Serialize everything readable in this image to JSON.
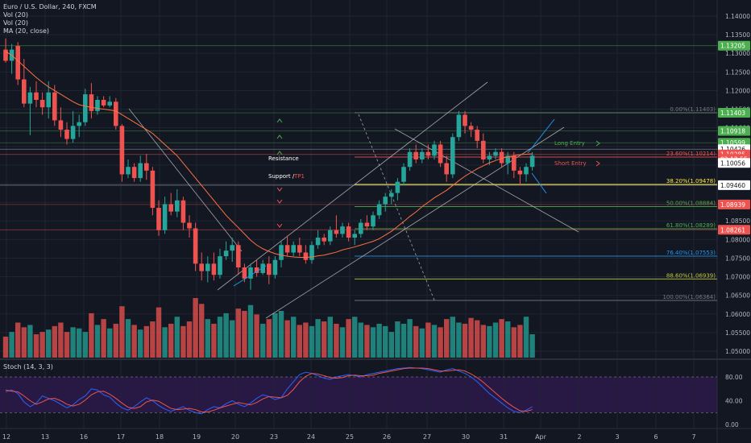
{
  "header": {
    "title": "Euro / U.S. Dollar, 240, FXCM",
    "indicators": [
      "Vol (20)",
      "Vol (20)",
      "MA (20, close)"
    ]
  },
  "stoch": {
    "label": "Stoch (14, 3, 3)",
    "ticks": [
      "80.00",
      "40.00",
      "0.00"
    ]
  },
  "colors": {
    "bg": "#131722",
    "grid": "#1f2433",
    "text": "#b2b5be",
    "up": "#26a69a",
    "down": "#ef5350",
    "vol_up": "#26a69a",
    "vol_down": "#ef5350",
    "ma": "#ff7043",
    "stoch_k": "#2962ff",
    "stoch_d": "#ef5350",
    "stoch_band": "#2d1a4a",
    "channel": "#c8c8c8"
  },
  "chart_data": {
    "type": "candlestick",
    "symbol": "Euro / U.S. Dollar",
    "timeframe": "240",
    "x_ticks": [
      "12",
      "13",
      "16",
      "17",
      "18",
      "19",
      "20",
      "23",
      "24",
      "25",
      "26",
      "27",
      "30",
      "31",
      "Apr",
      "2",
      "3",
      "6",
      "7"
    ],
    "y_ticks": [
      "1.14000",
      "1.13500",
      "1.13000",
      "1.12500",
      "1.12000",
      "1.11500",
      "1.11000",
      "1.10500",
      "1.10000",
      "1.09500",
      "1.09000",
      "1.08500",
      "1.08000",
      "1.07500",
      "1.07000",
      "1.06500",
      "1.06000",
      "1.05500",
      "1.05000"
    ],
    "ylim": [
      1.0475,
      1.1445
    ],
    "price_labels": [
      {
        "text": "1.13205",
        "value": 1.13205,
        "color": "#4caf50"
      },
      {
        "text": "1.11403",
        "value": 1.11403,
        "color": "#4caf50"
      },
      {
        "text": "1.10918",
        "value": 1.10918,
        "color": "#4caf50"
      },
      {
        "text": "1.10599",
        "value": 1.10599,
        "color": "#4caf50"
      },
      {
        "text": "1.10426",
        "value": 1.10426,
        "color": "#ffffff"
      },
      {
        "text": "1.10285",
        "value": 1.10285,
        "color": "#ef5350"
      },
      {
        "text": "02:12:55",
        "value": 1.10165,
        "color": "#ef5350"
      },
      {
        "text": "1.10056",
        "value": 1.10056,
        "color": "#ffffff"
      },
      {
        "text": "1.09460",
        "value": 1.0946,
        "color": "#ffffff"
      },
      {
        "text": "1.08939",
        "value": 1.08939,
        "color": "#ef5350"
      },
      {
        "text": "1.08261",
        "value": 1.08261,
        "color": "#ef5350"
      }
    ],
    "fib_levels": [
      {
        "label": "0.00%(1.11403)",
        "value": 1.11403,
        "color": "#787b86"
      },
      {
        "label": "23.60%(1.10214)",
        "value": 1.10214,
        "color": "#ef5350"
      },
      {
        "label": "38.20%(1.09478)",
        "value": 1.09478,
        "color": "#ffeb3b"
      },
      {
        "label": "50.00%(1.08884)",
        "value": 1.08884,
        "color": "#4caf50"
      },
      {
        "label": "61.80%(1.08289)",
        "value": 1.08289,
        "color": "#4caf50"
      },
      {
        "label": "76.40%(1.07553)",
        "value": 1.07553,
        "color": "#2196f3"
      },
      {
        "label": "88.60%(1.06939)",
        "value": 1.06939,
        "color": "#c0ca33"
      },
      {
        "label": "100.00%(1.06364)",
        "value": 1.06364,
        "color": "#787b86"
      }
    ],
    "annotations": {
      "resistance": "Resistance",
      "support": "Support /",
      "tp1": "TP1",
      "long_entry": "Long Entry",
      "short_entry": "Short Entry"
    },
    "candles": [
      [
        1.131,
        1.134,
        1.1275,
        1.128
      ],
      [
        1.128,
        1.1325,
        1.1245,
        1.131
      ],
      [
        1.132,
        1.133,
        1.1215,
        1.123
      ],
      [
        1.123,
        1.1285,
        1.1155,
        1.1165
      ],
      [
        1.1165,
        1.121,
        1.108,
        1.1195
      ],
      [
        1.1195,
        1.1225,
        1.1155,
        1.1175
      ],
      [
        1.1175,
        1.1195,
        1.1135,
        1.1155
      ],
      [
        1.1155,
        1.1225,
        1.1125,
        1.1195
      ],
      [
        1.1195,
        1.1215,
        1.1105,
        1.112
      ],
      [
        1.112,
        1.1155,
        1.1075,
        1.1095
      ],
      [
        1.1095,
        1.1115,
        1.1055,
        1.107
      ],
      [
        1.107,
        1.1145,
        1.106,
        1.1105
      ],
      [
        1.1105,
        1.1135,
        1.1075,
        1.1115
      ],
      [
        1.1115,
        1.1205,
        1.1105,
        1.119
      ],
      [
        1.119,
        1.122,
        1.1125,
        1.1145
      ],
      [
        1.1145,
        1.1185,
        1.1135,
        1.1175
      ],
      [
        1.1175,
        1.1185,
        1.1155,
        1.116
      ],
      [
        1.116,
        1.1185,
        1.1155,
        1.117
      ],
      [
        1.117,
        1.118,
        1.1095,
        1.1105
      ],
      [
        1.1105,
        1.111,
        1.0955,
        1.0975
      ],
      [
        1.0975,
        1.1015,
        1.0965,
        1.0995
      ],
      [
        1.0995,
        1.1005,
        1.0955,
        1.0965
      ],
      [
        1.0965,
        1.1025,
        1.0955,
        1.1005
      ],
      [
        1.1005,
        1.103,
        1.096,
        1.0985
      ],
      [
        1.0985,
        1.0995,
        1.0865,
        1.0885
      ],
      [
        1.0885,
        1.0905,
        1.081,
        1.0825
      ],
      [
        1.0825,
        1.0915,
        1.0815,
        1.0895
      ],
      [
        1.0895,
        1.0925,
        1.0865,
        1.0875
      ],
      [
        1.0875,
        1.0935,
        1.086,
        1.0905
      ],
      [
        1.0905,
        1.0915,
        1.0825,
        1.0845
      ],
      [
        1.0845,
        1.0865,
        1.0805,
        1.083
      ],
      [
        1.083,
        1.0845,
        1.0715,
        1.0735
      ],
      [
        1.0735,
        1.0765,
        1.069,
        1.0715
      ],
      [
        1.0715,
        1.0755,
        1.0685,
        1.0735
      ],
      [
        1.0735,
        1.0765,
        1.069,
        1.0705
      ],
      [
        1.0705,
        1.0775,
        1.0695,
        1.0755
      ],
      [
        1.0755,
        1.0795,
        1.0745,
        1.077
      ],
      [
        1.077,
        1.0805,
        1.074,
        1.0785
      ],
      [
        1.0785,
        1.0795,
        1.0705,
        1.0725
      ],
      [
        1.0725,
        1.0735,
        1.0685,
        1.0695
      ],
      [
        1.0695,
        1.0735,
        1.0665,
        1.0725
      ],
      [
        1.0725,
        1.0745,
        1.07,
        1.071
      ],
      [
        1.071,
        1.0745,
        1.0705,
        1.0735
      ],
      [
        1.0735,
        1.0755,
        1.068,
        1.0705
      ],
      [
        1.0705,
        1.0755,
        1.0695,
        1.0745
      ],
      [
        1.0745,
        1.0795,
        1.0725,
        1.0785
      ],
      [
        1.0785,
        1.081,
        1.0755,
        1.0765
      ],
      [
        1.0765,
        1.0795,
        1.0755,
        1.0785
      ],
      [
        1.0785,
        1.0805,
        1.0755,
        1.0765
      ],
      [
        1.0765,
        1.0785,
        1.0735,
        1.0745
      ],
      [
        1.0745,
        1.0795,
        1.0735,
        1.0785
      ],
      [
        1.0785,
        1.0825,
        1.0775,
        1.0805
      ],
      [
        1.0805,
        1.0815,
        1.0785,
        1.0795
      ],
      [
        1.0795,
        1.0835,
        1.0785,
        1.0825
      ],
      [
        1.0825,
        1.0865,
        1.0805,
        1.0815
      ],
      [
        1.0815,
        1.0845,
        1.0805,
        1.0835
      ],
      [
        1.0835,
        1.0845,
        1.0795,
        1.0805
      ],
      [
        1.0805,
        1.0825,
        1.0785,
        1.0815
      ],
      [
        1.0815,
        1.0855,
        1.0805,
        1.0845
      ],
      [
        1.0845,
        1.0865,
        1.0825,
        1.0835
      ],
      [
        1.0835,
        1.0875,
        1.0825,
        1.0865
      ],
      [
        1.0865,
        1.0905,
        1.0855,
        1.0895
      ],
      [
        1.0895,
        1.0925,
        1.0875,
        1.0915
      ],
      [
        1.0915,
        1.0935,
        1.0895,
        1.0925
      ],
      [
        1.0925,
        1.0965,
        1.0905,
        1.0955
      ],
      [
        1.0955,
        1.1005,
        1.0945,
        1.0995
      ],
      [
        1.0995,
        1.1045,
        1.0985,
        1.1035
      ],
      [
        1.1035,
        1.1055,
        1.1005,
        1.1015
      ],
      [
        1.1015,
        1.1045,
        1.1005,
        1.1035
      ],
      [
        1.1035,
        1.1055,
        1.1015,
        1.1025
      ],
      [
        1.1025,
        1.1065,
        1.1015,
        1.1055
      ],
      [
        1.1055,
        1.1065,
        1.0995,
        1.1005
      ],
      [
        1.1005,
        1.1025,
        1.0955,
        1.0975
      ],
      [
        1.0975,
        1.1085,
        1.0965,
        1.1075
      ],
      [
        1.1075,
        1.1145,
        1.1065,
        1.1135
      ],
      [
        1.1135,
        1.1145,
        1.1085,
        1.1105
      ],
      [
        1.1105,
        1.1115,
        1.1075,
        1.1095
      ],
      [
        1.1095,
        1.1105,
        1.1045,
        1.1065
      ],
      [
        1.1065,
        1.1085,
        1.1005,
        1.1015
      ],
      [
        1.1015,
        1.1035,
        1.1,
        1.1025
      ],
      [
        1.1025,
        1.1045,
        1.1015,
        1.1035
      ],
      [
        1.1035,
        1.1045,
        1.0995,
        1.1005
      ],
      [
        1.1005,
        1.1035,
        1.0975,
        1.1025
      ],
      [
        1.1025,
        1.1035,
        1.0965,
        1.0985
      ],
      [
        1.0985,
        1.0995,
        1.0945,
        1.0975
      ],
      [
        1.0975,
        1.1005,
        1.0955,
        1.0995
      ],
      [
        1.0995,
        1.1035,
        1.0985,
        1.1025
      ]
    ],
    "ma20": [
      1.1305,
      1.1295,
      1.128,
      1.1265,
      1.125,
      1.1235,
      1.1222,
      1.121,
      1.12,
      1.119,
      1.118,
      1.117,
      1.1162,
      1.1158,
      1.1155,
      1.1152,
      1.115,
      1.1148,
      1.1145,
      1.1135,
      1.1125,
      1.1115,
      1.1105,
      1.1095,
      1.1085,
      1.107,
      1.1055,
      1.104,
      1.1025,
      1.1005,
      1.0985,
      1.0965,
      1.0945,
      1.0925,
      1.0905,
      1.0885,
      1.0865,
      1.0848,
      1.0832,
      1.0815,
      1.0798,
      1.0785,
      1.0775,
      1.0768,
      1.0762,
      1.0758,
      1.0755,
      1.0753,
      1.0752,
      1.0752,
      1.0753,
      1.0756,
      1.0758,
      1.0762,
      1.0766,
      1.0772,
      1.0776,
      1.078,
      1.0785,
      1.079,
      1.0795,
      1.0802,
      1.0812,
      1.0822,
      1.0835,
      1.0848,
      1.0862,
      1.0874,
      1.0888,
      1.09,
      1.0912,
      1.0922,
      1.0932,
      1.0945,
      1.0958,
      1.097,
      1.098,
      1.099,
      1.0998,
      1.1006,
      1.1012,
      1.1018,
      1.1022,
      1.1025,
      1.1028,
      1.1029,
      1.103
    ],
    "volume": [
      18,
      22,
      30,
      26,
      28,
      20,
      22,
      24,
      27,
      30,
      22,
      26,
      25,
      22,
      38,
      28,
      33,
      25,
      29,
      44,
      33,
      28,
      24,
      27,
      31,
      43,
      26,
      29,
      35,
      27,
      31,
      51,
      46,
      33,
      29,
      35,
      38,
      32,
      42,
      40,
      45,
      37,
      29,
      33,
      38,
      40,
      32,
      35,
      28,
      30,
      27,
      33,
      31,
      35,
      29,
      26,
      33,
      35,
      30,
      28,
      26,
      29,
      27,
      22,
      31,
      29,
      33,
      27,
      25,
      30,
      28,
      26,
      33,
      35,
      30,
      29,
      34,
      32,
      28,
      27,
      30,
      33,
      31,
      26,
      28,
      35,
      20
    ],
    "stoch_k": [
      55,
      58,
      52,
      38,
      30,
      36,
      48,
      44,
      40,
      34,
      28,
      33,
      42,
      48,
      60,
      58,
      50,
      46,
      36,
      28,
      24,
      30,
      38,
      45,
      40,
      32,
      26,
      22,
      26,
      30,
      24,
      20,
      18,
      25,
      30,
      28,
      35,
      40,
      34,
      30,
      36,
      44,
      50,
      47,
      42,
      45,
      60,
      72,
      84,
      88,
      86,
      82,
      78,
      76,
      80,
      82,
      84,
      82,
      80,
      84,
      86,
      88,
      90,
      92,
      94,
      95,
      96,
      95,
      94,
      92,
      90,
      88,
      92,
      94,
      90,
      86,
      80,
      72,
      62,
      52,
      44,
      36,
      28,
      22,
      20,
      24,
      30
    ],
    "stoch_d": [
      58,
      56,
      55,
      48,
      40,
      34,
      38,
      43,
      44,
      40,
      34,
      31,
      34,
      41,
      50,
      55,
      56,
      51,
      44,
      36,
      29,
      27,
      30,
      38,
      41,
      39,
      33,
      27,
      25,
      26,
      27,
      25,
      21,
      21,
      24,
      28,
      31,
      34,
      37,
      35,
      33,
      37,
      43,
      47,
      46,
      45,
      49,
      59,
      72,
      81,
      86,
      85,
      82,
      79,
      78,
      79,
      82,
      83,
      82,
      82,
      83,
      86,
      88,
      90,
      92,
      94,
      95,
      95,
      95,
      94,
      92,
      90,
      90,
      91,
      92,
      90,
      85,
      79,
      71,
      62,
      53,
      44,
      36,
      29,
      23,
      22,
      25
    ],
    "stoch_levels": [
      80,
      20
    ]
  }
}
